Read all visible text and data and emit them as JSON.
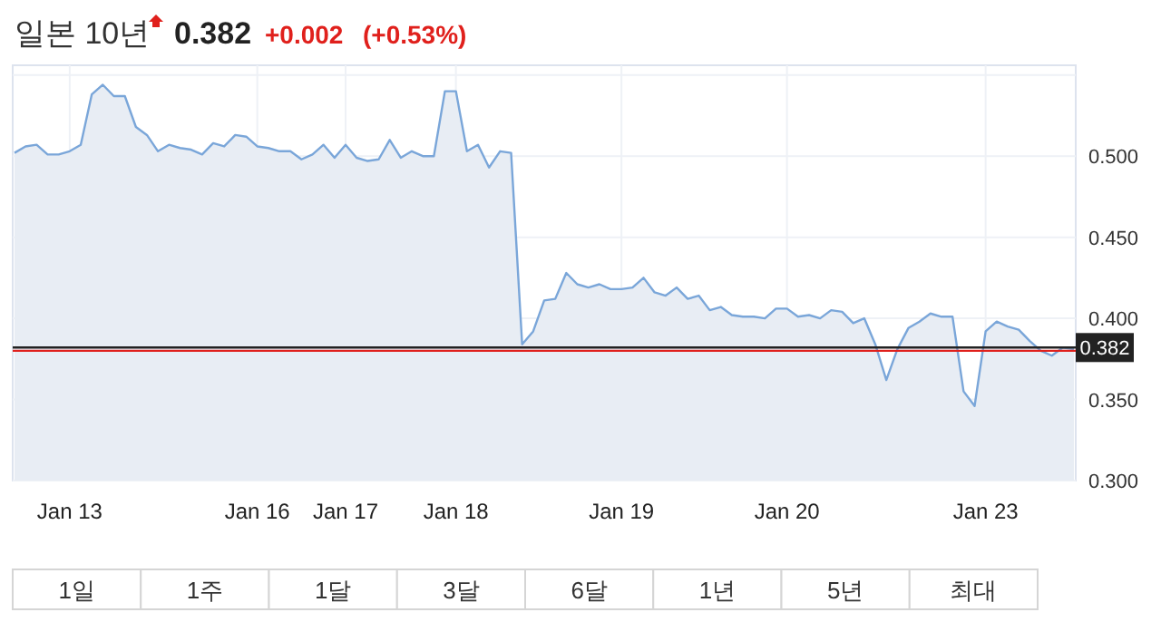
{
  "chart_data": {
    "type": "area",
    "title": "일본 10년",
    "annotations": [
      "0.382",
      "+0.002",
      "(+0.53%)",
      "1일",
      "1주",
      "1달",
      "3달",
      "6달",
      "1년",
      "5년",
      "최대"
    ],
    "categories": [
      null,
      null,
      null,
      null,
      null,
      "Jan 13",
      null,
      null,
      null,
      null,
      null,
      null,
      null,
      null,
      null,
      null,
      null,
      null,
      null,
      null,
      null,
      null,
      "Jan 16",
      null,
      null,
      null,
      null,
      null,
      null,
      null,
      "Jan 17",
      null,
      null,
      null,
      null,
      null,
      null,
      null,
      null,
      null,
      "Jan 18",
      null,
      null,
      null,
      null,
      null,
      null,
      null,
      null,
      null,
      null,
      null,
      null,
      null,
      null,
      "Jan 19",
      null,
      null,
      null,
      null,
      null,
      null,
      null,
      null,
      null,
      null,
      null,
      null,
      null,
      null,
      "Jan 20",
      null,
      null,
      null,
      null,
      null,
      null,
      null,
      null,
      null,
      null,
      null,
      null,
      null,
      null,
      null,
      null,
      null,
      "Jan 23",
      null,
      null,
      null,
      null,
      null,
      null,
      null,
      null
    ],
    "series": [
      {
        "color": "#7aa6d9",
        "values": [
          0.502,
          0.506,
          0.507,
          0.501,
          0.501,
          0.503,
          0.507,
          0.538,
          0.544,
          0.537,
          0.537,
          0.518,
          0.513,
          0.503,
          0.507,
          0.505,
          0.504,
          0.501,
          0.508,
          0.506,
          0.513,
          0.512,
          0.506,
          0.505,
          0.503,
          0.503,
          0.498,
          0.501,
          0.507,
          0.499,
          0.507,
          0.499,
          0.497,
          0.498,
          0.51,
          0.499,
          0.503,
          0.5,
          0.5,
          0.54,
          0.54,
          0.503,
          0.507,
          0.493,
          0.503,
          0.502,
          0.384,
          0.392,
          0.411,
          0.412,
          0.428,
          0.421,
          0.419,
          0.421,
          0.418,
          0.418,
          0.419,
          0.425,
          0.416,
          0.414,
          0.419,
          0.412,
          0.414,
          0.405,
          0.407,
          0.402,
          0.401,
          0.401,
          0.4,
          0.406,
          0.406,
          0.401,
          0.402,
          0.4,
          0.405,
          0.404,
          0.397,
          0.4,
          0.384,
          0.362,
          0.381,
          0.394,
          0.398,
          0.403,
          0.401,
          0.401,
          0.355,
          0.346,
          0.392,
          0.398,
          0.395,
          0.393,
          0.386,
          0.38,
          0.377,
          0.382,
          0.381
        ]
      }
    ],
    "ylim": [
      0.3,
      0.556
    ],
    "yticks": [
      {
        "value": 0.3,
        "label": "0.300"
      },
      {
        "value": 0.35,
        "label": "0.350"
      },
      {
        "value": 0.4,
        "label": "0.400"
      },
      {
        "value": 0.45,
        "label": "0.450"
      },
      {
        "value": 0.5,
        "label": "0.500"
      },
      {
        "value": 0.55,
        "label": null
      }
    ],
    "ref_lines": [
      {
        "axis": "y",
        "value": 0.382,
        "label": "0.382",
        "color": "#222222"
      },
      {
        "axis": "y",
        "value": 0.38,
        "color": "#e0201c"
      }
    ],
    "grid": true
  }
}
